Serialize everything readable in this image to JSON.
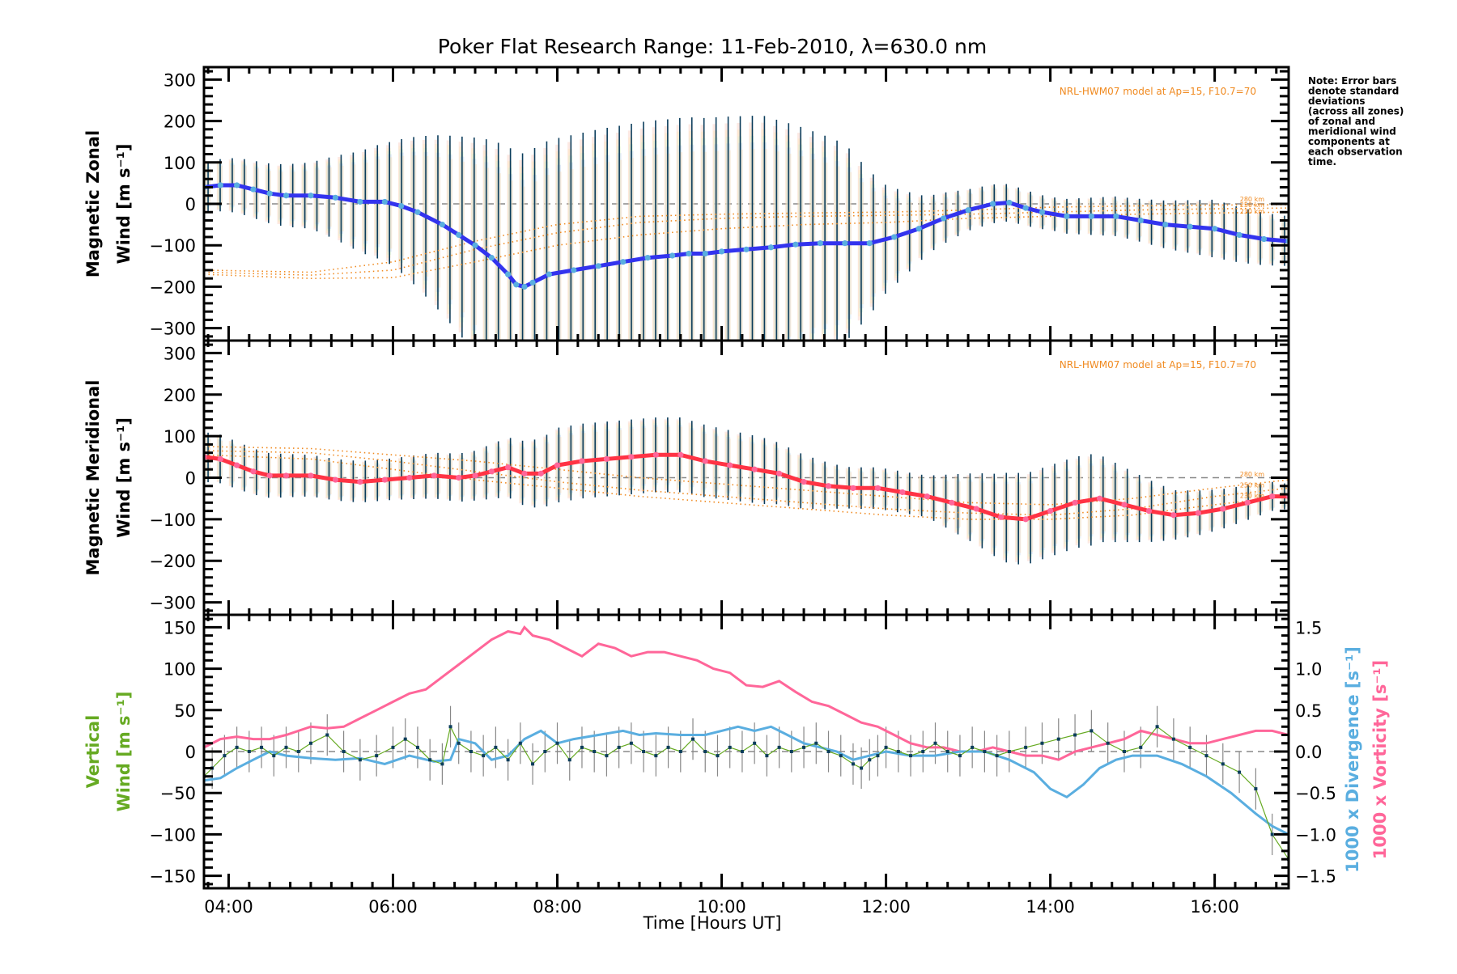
{
  "chart_data": {
    "type": "line",
    "title": "Poker Flat Research Range: 11-Feb-2010, λ=630.0 nm",
    "xlabel": "Time [Hours UT]",
    "xlim": [
      3.7,
      16.9
    ],
    "x_ticks": [
      4,
      6,
      8,
      10,
      12,
      14,
      16
    ],
    "x_tick_labels": [
      "04:00",
      "06:00",
      "08:00",
      "10:00",
      "12:00",
      "14:00",
      "16:00"
    ],
    "note": [
      "Note: Error bars",
      "denote standard",
      "deviations",
      "(across all zones)",
      "of zonal and",
      "meridional wind",
      "components at",
      "each observation",
      "time."
    ],
    "panels": [
      {
        "name": "zonal",
        "ylabel_line1": "Magnetic Zonal",
        "ylabel_line2": "Wind [m s⁻¹]",
        "ylim": [
          -330,
          330
        ],
        "y_ticks": [
          -300,
          -200,
          -100,
          0,
          100,
          200,
          300
        ],
        "model_label": "NRL-HWM07 model at Ap=15, F10.7=70",
        "km_labels": [
          "280 km",
          "250 km",
          "230 km"
        ],
        "line_color": "#3333ee",
        "marker_color": "#5aaee0",
        "series": {
          "name": "Mean zonal wind",
          "x": [
            3.7,
            3.9,
            4.1,
            4.3,
            4.5,
            4.7,
            5.0,
            5.3,
            5.6,
            5.9,
            6.1,
            6.3,
            6.6,
            6.8,
            7.0,
            7.2,
            7.4,
            7.5,
            7.6,
            7.7,
            7.9,
            8.2,
            8.5,
            8.8,
            9.1,
            9.4,
            9.6,
            9.8,
            10.0,
            10.3,
            10.6,
            10.9,
            11.2,
            11.5,
            11.8,
            12.1,
            12.4,
            12.7,
            13.0,
            13.3,
            13.5,
            13.7,
            13.9,
            14.2,
            14.5,
            14.8,
            15.1,
            15.4,
            15.7,
            16.0,
            16.3,
            16.6,
            16.9
          ],
          "y": [
            40,
            45,
            45,
            35,
            25,
            20,
            20,
            15,
            5,
            5,
            -5,
            -20,
            -50,
            -75,
            -100,
            -130,
            -170,
            -195,
            -200,
            -190,
            -170,
            -160,
            -150,
            -140,
            -130,
            -125,
            -120,
            -120,
            -115,
            -110,
            -105,
            -98,
            -95,
            -95,
            -95,
            -80,
            -60,
            -35,
            -15,
            0,
            3,
            -10,
            -20,
            -30,
            -30,
            -30,
            -40,
            -50,
            -55,
            -60,
            -75,
            -85,
            -90
          ]
        },
        "error_halfwidth_by_x": {
          "x": [
            3.7,
            5.0,
            6.0,
            7.0,
            7.5,
            8.5,
            9.5,
            10.5,
            11.5,
            12.0,
            12.5,
            13.0,
            14.0,
            15.0,
            16.0,
            16.9
          ],
          "y": [
            60,
            80,
            150,
            260,
            320,
            330,
            330,
            320,
            240,
            130,
            70,
            50,
            40,
            50,
            70,
            60
          ]
        },
        "model_curves": [
          {
            "label": "280 km",
            "x": [
              3.7,
              5.0,
              6.0,
              7.0,
              8.0,
              9.0,
              10.0,
              11.0,
              12.0,
              13.0,
              14.0,
              15.0,
              16.0,
              16.9
            ],
            "y": [
              -160,
              -165,
              -140,
              -90,
              -50,
              -30,
              -25,
              -22,
              -20,
              -15,
              -8,
              -5,
              -3,
              -2
            ]
          },
          {
            "label": "250 km",
            "x": [
              3.7,
              5.0,
              6.0,
              7.0,
              8.0,
              9.0,
              10.0,
              11.0,
              12.0,
              13.0,
              14.0,
              15.0,
              16.0,
              16.9
            ],
            "y": [
              -165,
              -172,
              -160,
              -110,
              -70,
              -45,
              -35,
              -30,
              -28,
              -25,
              -20,
              -15,
              -12,
              -10
            ]
          },
          {
            "label": "230 km",
            "x": [
              3.7,
              5.0,
              6.0,
              7.0,
              8.0,
              9.0,
              10.0,
              11.0,
              12.0,
              13.0,
              14.0,
              15.0,
              16.0,
              16.9
            ],
            "y": [
              -170,
              -180,
              -178,
              -140,
              -100,
              -75,
              -60,
              -50,
              -45,
              -35,
              -30,
              -25,
              -22,
              -20
            ]
          }
        ]
      },
      {
        "name": "meridional",
        "ylabel_line1": "Magnetic Meridional",
        "ylabel_line2": "Wind [m s⁻¹]",
        "ylim": [
          -330,
          330
        ],
        "y_ticks": [
          -300,
          -200,
          -100,
          0,
          100,
          200,
          300
        ],
        "model_label": "NRL-HWM07 model at Ap=15, F10.7=70",
        "km_labels": [
          "280 km",
          "250 km",
          "230 km"
        ],
        "line_color": "#ff3344",
        "marker_color": "#ff6699",
        "series": {
          "name": "Mean meridional wind",
          "x": [
            3.7,
            3.9,
            4.1,
            4.3,
            4.5,
            4.7,
            5.0,
            5.3,
            5.6,
            5.9,
            6.2,
            6.5,
            6.8,
            7.0,
            7.2,
            7.4,
            7.6,
            7.8,
            8.0,
            8.3,
            8.6,
            8.9,
            9.2,
            9.5,
            9.8,
            10.1,
            10.4,
            10.7,
            11.0,
            11.3,
            11.6,
            11.9,
            12.2,
            12.5,
            12.8,
            13.1,
            13.4,
            13.7,
            14.0,
            14.3,
            14.6,
            14.9,
            15.2,
            15.5,
            15.8,
            16.1,
            16.4,
            16.7,
            16.9
          ],
          "y": [
            50,
            45,
            30,
            15,
            5,
            5,
            5,
            -5,
            -10,
            -5,
            0,
            5,
            0,
            5,
            15,
            25,
            10,
            10,
            30,
            40,
            45,
            50,
            55,
            55,
            40,
            30,
            20,
            10,
            -10,
            -20,
            -25,
            -25,
            -35,
            -45,
            -60,
            -75,
            -95,
            -100,
            -80,
            -60,
            -50,
            -65,
            -80,
            -90,
            -85,
            -75,
            -60,
            -45,
            -45
          ]
        },
        "error_halfwidth_by_x": {
          "x": [
            3.7,
            5.0,
            6.0,
            7.0,
            8.0,
            9.0,
            9.5,
            10.5,
            11.5,
            12.5,
            13.5,
            14.5,
            15.5,
            16.5,
            16.9
          ],
          "y": [
            60,
            50,
            50,
            60,
            90,
            90,
            90,
            80,
            50,
            50,
            110,
            110,
            60,
            40,
            30
          ]
        },
        "model_curves": [
          {
            "label": "280 km",
            "x": [
              3.7,
              5.0,
              6.0,
              7.0,
              8.0,
              9.0,
              10.0,
              11.0,
              12.0,
              13.0,
              14.0,
              15.0,
              16.0,
              16.9
            ],
            "y": [
              75,
              70,
              55,
              40,
              20,
              0,
              -15,
              -30,
              -45,
              -60,
              -65,
              -50,
              -25,
              -5
            ]
          },
          {
            "label": "250 km",
            "x": [
              3.7,
              5.0,
              6.0,
              7.0,
              8.0,
              9.0,
              10.0,
              11.0,
              12.0,
              13.0,
              14.0,
              15.0,
              16.0,
              16.9
            ],
            "y": [
              65,
              60,
              40,
              15,
              -10,
              -30,
              -45,
              -60,
              -75,
              -85,
              -90,
              -75,
              -45,
              -25
            ]
          },
          {
            "label": "230 km",
            "x": [
              3.7,
              5.0,
              6.0,
              7.0,
              8.0,
              9.0,
              10.0,
              11.0,
              12.0,
              13.0,
              14.0,
              15.0,
              16.0,
              16.9
            ],
            "y": [
              55,
              45,
              20,
              -5,
              -25,
              -45,
              -60,
              -75,
              -90,
              -100,
              -100,
              -90,
              -65,
              -45
            ]
          }
        ]
      },
      {
        "name": "vertical",
        "ylabel_line1": "Vertical",
        "ylabel_line2": "Wind [m s⁻¹]",
        "ylabel_color": "#66aa22",
        "ylim": [
          -165,
          165
        ],
        "y_ticks": [
          -150,
          -100,
          -50,
          0,
          50,
          100,
          150
        ],
        "right_axis": {
          "ylim": [
            -1.65,
            1.65
          ],
          "y_ticks": [
            -1.5,
            -1.0,
            -0.5,
            0.0,
            0.5,
            1.0,
            1.5
          ],
          "y_tick_labels": [
            "−1.5",
            "−1.0",
            "−0.5",
            "0.0",
            "0.5",
            "1.0",
            "1.5"
          ],
          "label_divergence": "1000 x Divergence [s⁻¹]",
          "label_vorticity": "1000 x Vorticity [s⁻¹]",
          "divergence_color": "#5aaee0",
          "vorticity_color": "#ff6699"
        },
        "vertical_wind": {
          "name": "Vertical wind",
          "color": "#66aa22",
          "x": [
            3.7,
            3.8,
            3.95,
            4.1,
            4.25,
            4.4,
            4.55,
            4.7,
            4.85,
            5.0,
            5.2,
            5.4,
            5.6,
            5.8,
            6.0,
            6.15,
            6.3,
            6.45,
            6.6,
            6.7,
            6.8,
            6.95,
            7.1,
            7.25,
            7.4,
            7.55,
            7.7,
            7.85,
            8.0,
            8.15,
            8.3,
            8.45,
            8.6,
            8.75,
            8.9,
            9.05,
            9.2,
            9.35,
            9.5,
            9.65,
            9.8,
            9.95,
            10.1,
            10.25,
            10.4,
            10.55,
            10.7,
            10.85,
            11.0,
            11.15,
            11.3,
            11.45,
            11.6,
            11.7,
            11.8,
            11.9,
            12.0,
            12.15,
            12.3,
            12.45,
            12.6,
            12.75,
            12.9,
            13.05,
            13.2,
            13.35,
            13.5,
            13.7,
            13.9,
            14.1,
            14.3,
            14.5,
            14.7,
            14.9,
            15.1,
            15.3,
            15.5,
            15.7,
            15.9,
            16.1,
            16.3,
            16.5,
            16.7,
            16.9
          ],
          "y": [
            -30,
            -20,
            -5,
            5,
            0,
            5,
            -5,
            5,
            0,
            10,
            20,
            0,
            -10,
            -5,
            5,
            15,
            5,
            -10,
            -15,
            30,
            10,
            0,
            -5,
            5,
            -10,
            10,
            -15,
            0,
            10,
            -10,
            5,
            0,
            -5,
            5,
            10,
            0,
            -5,
            5,
            0,
            15,
            0,
            -5,
            5,
            0,
            10,
            -5,
            5,
            0,
            5,
            10,
            0,
            -5,
            -15,
            -20,
            -10,
            -5,
            5,
            0,
            -5,
            0,
            10,
            0,
            -5,
            5,
            0,
            -5,
            0,
            5,
            10,
            15,
            20,
            25,
            10,
            0,
            5,
            30,
            15,
            5,
            -5,
            -15,
            -25,
            -45,
            -100,
            -130
          ],
          "error_halfwidth": 25
        },
        "divergence": {
          "name": "1000 x Divergence",
          "x": [
            3.7,
            3.9,
            4.1,
            4.3,
            4.5,
            4.7,
            5.0,
            5.3,
            5.6,
            5.9,
            6.2,
            6.5,
            6.7,
            6.8,
            7.0,
            7.2,
            7.4,
            7.6,
            7.8,
            8.0,
            8.2,
            8.5,
            8.8,
            9.0,
            9.2,
            9.5,
            9.8,
            10.0,
            10.2,
            10.4,
            10.6,
            10.8,
            11.0,
            11.2,
            11.4,
            11.6,
            11.8,
            12.0,
            12.3,
            12.6,
            12.9,
            13.2,
            13.5,
            13.8,
            14.0,
            14.2,
            14.4,
            14.6,
            14.8,
            15.0,
            15.3,
            15.6,
            15.9,
            16.2,
            16.5,
            16.7,
            16.9
          ],
          "y": [
            -0.35,
            -0.32,
            -0.2,
            -0.1,
            0.0,
            -0.05,
            -0.08,
            -0.1,
            -0.08,
            -0.15,
            -0.05,
            -0.12,
            -0.1,
            0.15,
            0.1,
            -0.1,
            -0.05,
            0.15,
            0.25,
            0.1,
            0.15,
            0.2,
            0.25,
            0.2,
            0.22,
            0.2,
            0.2,
            0.25,
            0.3,
            0.25,
            0.3,
            0.2,
            0.1,
            0.05,
            0.0,
            -0.1,
            -0.05,
            0.0,
            -0.05,
            -0.05,
            0.0,
            0.0,
            -0.1,
            -0.25,
            -0.45,
            -0.55,
            -0.4,
            -0.2,
            -0.1,
            -0.05,
            -0.05,
            -0.15,
            -0.3,
            -0.5,
            -0.75,
            -0.9,
            -1.0
          ]
        },
        "vorticity": {
          "name": "1000 x Vorticity",
          "x": [
            3.7,
            3.9,
            4.1,
            4.3,
            4.5,
            4.7,
            5.0,
            5.2,
            5.4,
            5.6,
            5.8,
            6.0,
            6.2,
            6.4,
            6.6,
            6.8,
            7.0,
            7.2,
            7.4,
            7.55,
            7.6,
            7.7,
            7.9,
            8.1,
            8.3,
            8.5,
            8.7,
            8.9,
            9.1,
            9.3,
            9.5,
            9.7,
            9.9,
            10.1,
            10.3,
            10.5,
            10.7,
            10.9,
            11.1,
            11.3,
            11.5,
            11.7,
            11.9,
            12.1,
            12.3,
            12.5,
            12.7,
            12.9,
            13.1,
            13.3,
            13.5,
            13.7,
            13.9,
            14.1,
            14.3,
            14.5,
            14.7,
            14.9,
            15.1,
            15.3,
            15.5,
            15.7,
            15.9,
            16.1,
            16.3,
            16.5,
            16.7,
            16.9
          ],
          "y": [
            0.05,
            0.15,
            0.18,
            0.15,
            0.15,
            0.2,
            0.3,
            0.28,
            0.3,
            0.4,
            0.5,
            0.6,
            0.7,
            0.75,
            0.9,
            1.05,
            1.2,
            1.35,
            1.45,
            1.42,
            1.5,
            1.4,
            1.35,
            1.25,
            1.15,
            1.3,
            1.25,
            1.15,
            1.2,
            1.2,
            1.15,
            1.1,
            1.0,
            0.95,
            0.8,
            0.78,
            0.85,
            0.72,
            0.6,
            0.55,
            0.45,
            0.35,
            0.3,
            0.2,
            0.1,
            0.05,
            0.05,
            0.0,
            0.0,
            0.05,
            0.0,
            -0.05,
            -0.05,
            -0.1,
            0.0,
            0.05,
            0.1,
            0.15,
            0.25,
            0.2,
            0.15,
            0.1,
            0.1,
            0.15,
            0.2,
            0.25,
            0.25,
            0.2
          ]
        }
      }
    ]
  }
}
